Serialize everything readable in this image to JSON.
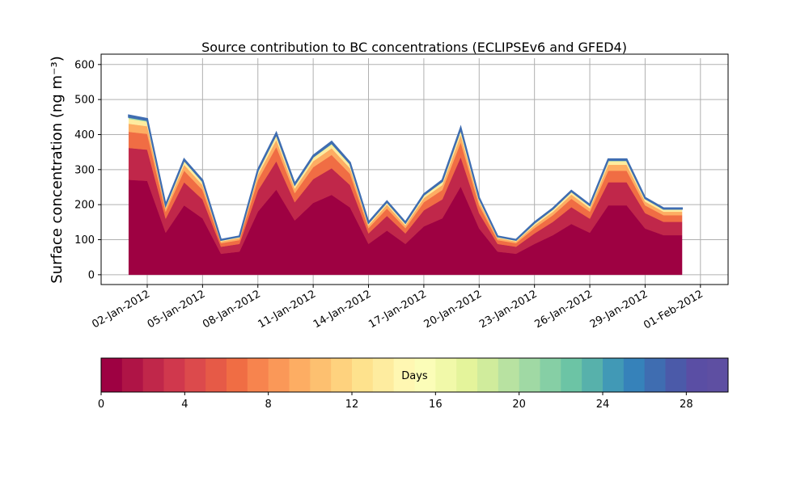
{
  "chart_data": {
    "type": "stacked_area",
    "title": "Source contribution to BC concentrations (ECLIPSEv6 and GFED4)",
    "y_label": "Surface concentration (ng m⁻³)",
    "x": [
      "2012-01-01",
      "2012-01-02",
      "2012-01-03",
      "2012-01-04",
      "2012-01-05",
      "2012-01-06",
      "2012-01-07",
      "2012-01-08",
      "2012-01-09",
      "2012-01-10",
      "2012-01-11",
      "2012-01-12",
      "2012-01-13",
      "2012-01-14",
      "2012-01-15",
      "2012-01-16",
      "2012-01-17",
      "2012-01-18",
      "2012-01-19",
      "2012-01-20",
      "2012-01-21",
      "2012-01-22",
      "2012-01-23",
      "2012-01-24",
      "2012-01-25",
      "2012-01-26",
      "2012-01-27",
      "2012-01-28",
      "2012-01-29",
      "2012-01-30",
      "2012-01-31"
    ],
    "series": [
      {
        "color": "#9e0142",
        "values": [
          271,
          268,
          120,
          198,
          161,
          60,
          66,
          180,
          243,
          155,
          205,
          228,
          192,
          88,
          126,
          88,
          138,
          161,
          252,
          132,
          66,
          60,
          88,
          113,
          145,
          120,
          198,
          198,
          132,
          113,
          113
        ]
      },
      {
        "color": "#c0274a",
        "values": [
          91,
          89,
          40,
          66,
          54,
          20,
          22,
          60,
          81,
          52,
          68,
          76,
          64,
          30,
          42,
          30,
          46,
          54,
          84,
          44,
          22,
          20,
          30,
          38,
          48,
          40,
          66,
          66,
          44,
          38,
          38
        ]
      },
      {
        "color": "#f06d44",
        "values": [
          46,
          45,
          20,
          33,
          27,
          10,
          11,
          30,
          41,
          26,
          34,
          38,
          32,
          15,
          21,
          15,
          23,
          27,
          42,
          22,
          11,
          10,
          15,
          19,
          24,
          20,
          33,
          33,
          22,
          19,
          19
        ]
      },
      {
        "color": "#fdad63",
        "values": [
          23,
          22,
          10,
          17,
          14,
          5,
          6,
          15,
          20,
          13,
          17,
          19,
          16,
          8,
          11,
          8,
          12,
          14,
          21,
          11,
          6,
          5,
          8,
          10,
          12,
          10,
          17,
          17,
          11,
          10,
          10
        ]
      },
      {
        "color": "#feec9f",
        "values": [
          14,
          13,
          6,
          10,
          8,
          3,
          3,
          9,
          12,
          8,
          10,
          11,
          10,
          5,
          6,
          5,
          7,
          8,
          13,
          7,
          3,
          3,
          5,
          6,
          7,
          6,
          10,
          10,
          7,
          6,
          6
        ]
      },
      {
        "color": "#a0d9a4",
        "values": [
          5,
          4,
          2,
          3,
          3,
          1,
          1,
          3,
          4,
          3,
          3,
          4,
          3,
          2,
          2,
          2,
          2,
          3,
          4,
          2,
          1,
          1,
          2,
          2,
          2,
          2,
          3,
          3,
          2,
          2,
          2
        ]
      },
      {
        "color": "#3f6db1",
        "values": [
          5,
          4,
          2,
          3,
          3,
          1,
          1,
          3,
          4,
          3,
          3,
          4,
          3,
          2,
          2,
          2,
          2,
          3,
          4,
          2,
          1,
          1,
          2,
          2,
          2,
          2,
          3,
          3,
          2,
          2,
          2
        ]
      }
    ],
    "xlim": [
      "2011-12-30T12:00",
      "2012-02-02T12:00"
    ],
    "xticks": [
      {
        "value": "2012-01-02",
        "label": "02-Jan-2012"
      },
      {
        "value": "2012-01-05",
        "label": "05-Jan-2012"
      },
      {
        "value": "2012-01-08",
        "label": "08-Jan-2012"
      },
      {
        "value": "2012-01-11",
        "label": "11-Jan-2012"
      },
      {
        "value": "2012-01-14",
        "label": "14-Jan-2012"
      },
      {
        "value": "2012-01-17",
        "label": "17-Jan-2012"
      },
      {
        "value": "2012-01-20",
        "label": "20-Jan-2012"
      },
      {
        "value": "2012-01-23",
        "label": "23-Jan-2012"
      },
      {
        "value": "2012-01-26",
        "label": "26-Jan-2012"
      },
      {
        "value": "2012-01-29",
        "label": "29-Jan-2012"
      },
      {
        "value": "2012-02-01",
        "label": "01-Feb-2012"
      }
    ],
    "ylim": [
      -28,
      618
    ],
    "yticks": [
      0,
      100,
      200,
      300,
      400,
      500,
      600
    ],
    "grid": true,
    "colorbar": {
      "label": "Days",
      "lim": [
        0,
        30
      ],
      "ticks": [
        0,
        4,
        8,
        12,
        16,
        20,
        24,
        28
      ],
      "colors": [
        "#9e0142",
        "#af1446",
        "#c0274a",
        "#d0384d",
        "#dc4a4c",
        "#e65a47",
        "#f06d44",
        "#f7844e",
        "#fa9858",
        "#fdad63",
        "#fdc070",
        "#fed27e",
        "#fee28d",
        "#feec9f",
        "#fff7b2",
        "#fbfdb8",
        "#f1f9a9",
        "#e4f49b",
        "#d0ec9c",
        "#b8e2a1",
        "#a0d9a4",
        "#86cfa5",
        "#6cc4a5",
        "#57b1ab",
        "#4199b6",
        "#3682ba",
        "#3f6db1",
        "#4b5aa9",
        "#5a4ea4",
        "#5e4fa2"
      ]
    }
  }
}
